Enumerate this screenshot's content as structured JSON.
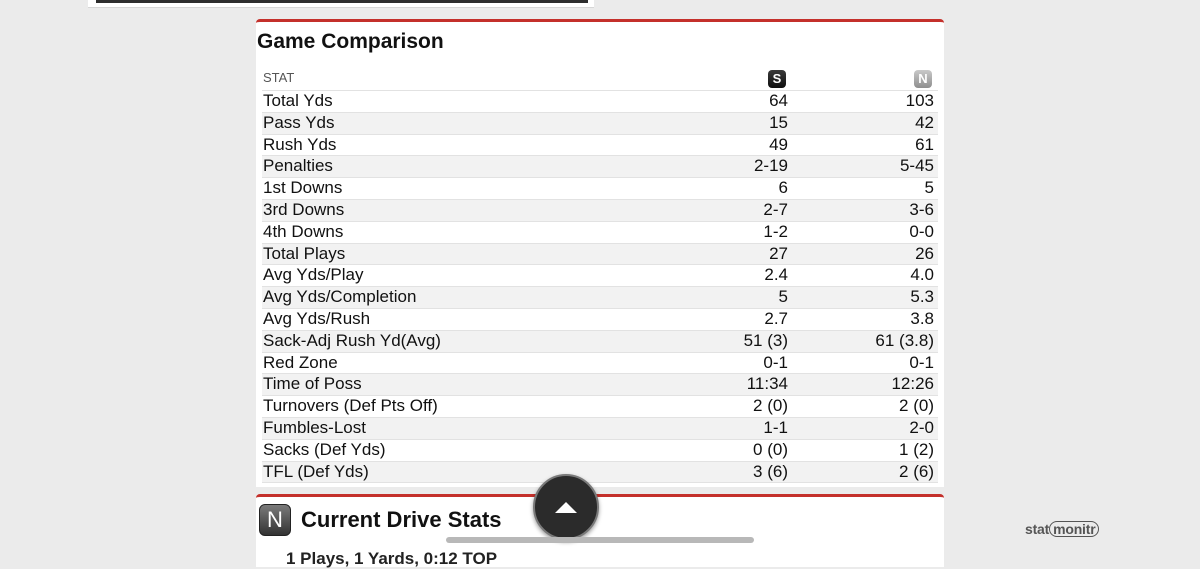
{
  "comparison": {
    "title": "Game Comparison",
    "stat_header": "STAT",
    "team_a_logo": "S",
    "team_b_logo": "N",
    "rows": [
      {
        "stat": "Total Yds",
        "a": "64",
        "b": "103"
      },
      {
        "stat": "Pass Yds",
        "a": "15",
        "b": "42"
      },
      {
        "stat": "Rush Yds",
        "a": "49",
        "b": "61"
      },
      {
        "stat": "Penalties",
        "a": "2-19",
        "b": "5-45"
      },
      {
        "stat": "1st Downs",
        "a": "6",
        "b": "5"
      },
      {
        "stat": "3rd Downs",
        "a": "2-7",
        "b": "3-6"
      },
      {
        "stat": "4th Downs",
        "a": "1-2",
        "b": "0-0"
      },
      {
        "stat": "Total Plays",
        "a": "27",
        "b": "26"
      },
      {
        "stat": "Avg Yds/Play",
        "a": "2.4",
        "b": "4.0"
      },
      {
        "stat": "Avg Yds/Completion",
        "a": "5",
        "b": "5.3"
      },
      {
        "stat": "Avg Yds/Rush",
        "a": "2.7",
        "b": "3.8"
      },
      {
        "stat": "Sack-Adj Rush Yd(Avg)",
        "a": "51 (3)",
        "b": "61 (3.8)"
      },
      {
        "stat": "Red Zone",
        "a": "0-1",
        "b": "0-1"
      },
      {
        "stat": "Time of Poss",
        "a": "11:34",
        "b": "12:26"
      },
      {
        "stat": "Turnovers (Def Pts Off)",
        "a": "2 (0)",
        "b": "2 (0)"
      },
      {
        "stat": "Fumbles-Lost",
        "a": "1-1",
        "b": "2-0"
      },
      {
        "stat": "Sacks (Def Yds)",
        "a": "0 (0)",
        "b": "1 (2)"
      },
      {
        "stat": "TFL (Def Yds)",
        "a": "3 (6)",
        "b": "2 (6)"
      }
    ]
  },
  "drive": {
    "title": "Current Drive Stats",
    "team_logo": "N",
    "summary": "1 Plays, 1 Yards, 0:12 TOP"
  },
  "brand": {
    "prefix": "stat",
    "suffix": "monitr"
  },
  "colors": {
    "accent": "#c4302b"
  },
  "icons": {
    "scroll_top": "up-triangle-icon"
  }
}
